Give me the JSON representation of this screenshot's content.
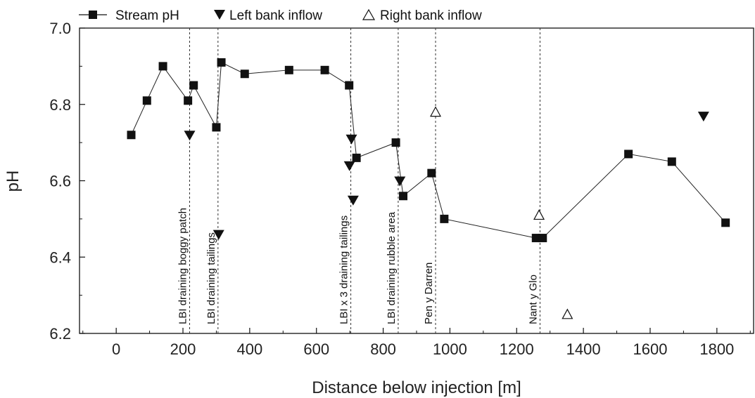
{
  "chart_data": {
    "type": "scatter",
    "xlabel": "Distance below injection [m]",
    "ylabel": "pH",
    "xlim": [
      -110,
      1910
    ],
    "ylim": [
      6.2,
      7.0
    ],
    "x_ticks": [
      "0",
      "200",
      "400",
      "600",
      "800",
      "1000",
      "1200",
      "1400",
      "1600",
      "1800"
    ],
    "y_ticks": [
      "6.2",
      "6.4",
      "6.6",
      "6.8",
      "7.0"
    ],
    "legend": {
      "position": "top",
      "entries": [
        "Stream pH",
        "Left bank inflow",
        "Right bank inflow"
      ]
    },
    "series": [
      {
        "name": "Stream pH",
        "marker": "filled-square",
        "line": true,
        "points": [
          {
            "x": 45,
            "y": 6.72
          },
          {
            "x": 92,
            "y": 6.81
          },
          {
            "x": 140,
            "y": 6.9
          },
          {
            "x": 215,
            "y": 6.81
          },
          {
            "x": 232,
            "y": 6.85
          },
          {
            "x": 300,
            "y": 6.74
          },
          {
            "x": 315,
            "y": 6.91
          },
          {
            "x": 385,
            "y": 6.88
          },
          {
            "x": 518,
            "y": 6.89
          },
          {
            "x": 625,
            "y": 6.89
          },
          {
            "x": 698,
            "y": 6.85
          },
          {
            "x": 720,
            "y": 6.66
          },
          {
            "x": 838,
            "y": 6.7
          },
          {
            "x": 860,
            "y": 6.56
          },
          {
            "x": 945,
            "y": 6.62
          },
          {
            "x": 983,
            "y": 6.5
          },
          {
            "x": 1258,
            "y": 6.45
          },
          {
            "x": 1278,
            "y": 6.45
          },
          {
            "x": 1535,
            "y": 6.67
          },
          {
            "x": 1665,
            "y": 6.65
          },
          {
            "x": 1826,
            "y": 6.49
          }
        ]
      },
      {
        "name": "Left bank inflow",
        "marker": "filled-triangle-down",
        "line": false,
        "points": [
          {
            "x": 220,
            "y": 6.72
          },
          {
            "x": 307,
            "y": 6.46
          },
          {
            "x": 699,
            "y": 6.64
          },
          {
            "x": 705,
            "y": 6.71
          },
          {
            "x": 710,
            "y": 6.55
          },
          {
            "x": 850,
            "y": 6.6
          },
          {
            "x": 1760,
            "y": 6.77
          }
        ]
      },
      {
        "name": "Right bank inflow",
        "marker": "open-triangle-up",
        "line": false,
        "points": [
          {
            "x": 957,
            "y": 6.78
          },
          {
            "x": 1267,
            "y": 6.51
          },
          {
            "x": 1352,
            "y": 6.25
          }
        ]
      }
    ],
    "annotations": [
      {
        "x": 220,
        "label": "LBI draining boggy patch"
      },
      {
        "x": 305,
        "label": "LBI draining tailings"
      },
      {
        "x": 703,
        "label": "LBI x 3 draining tailings"
      },
      {
        "x": 845,
        "label": "LBI draining rubble area"
      },
      {
        "x": 957,
        "label": "Pen y Darren"
      },
      {
        "x": 1270,
        "label": "Nant y Glo"
      }
    ]
  }
}
